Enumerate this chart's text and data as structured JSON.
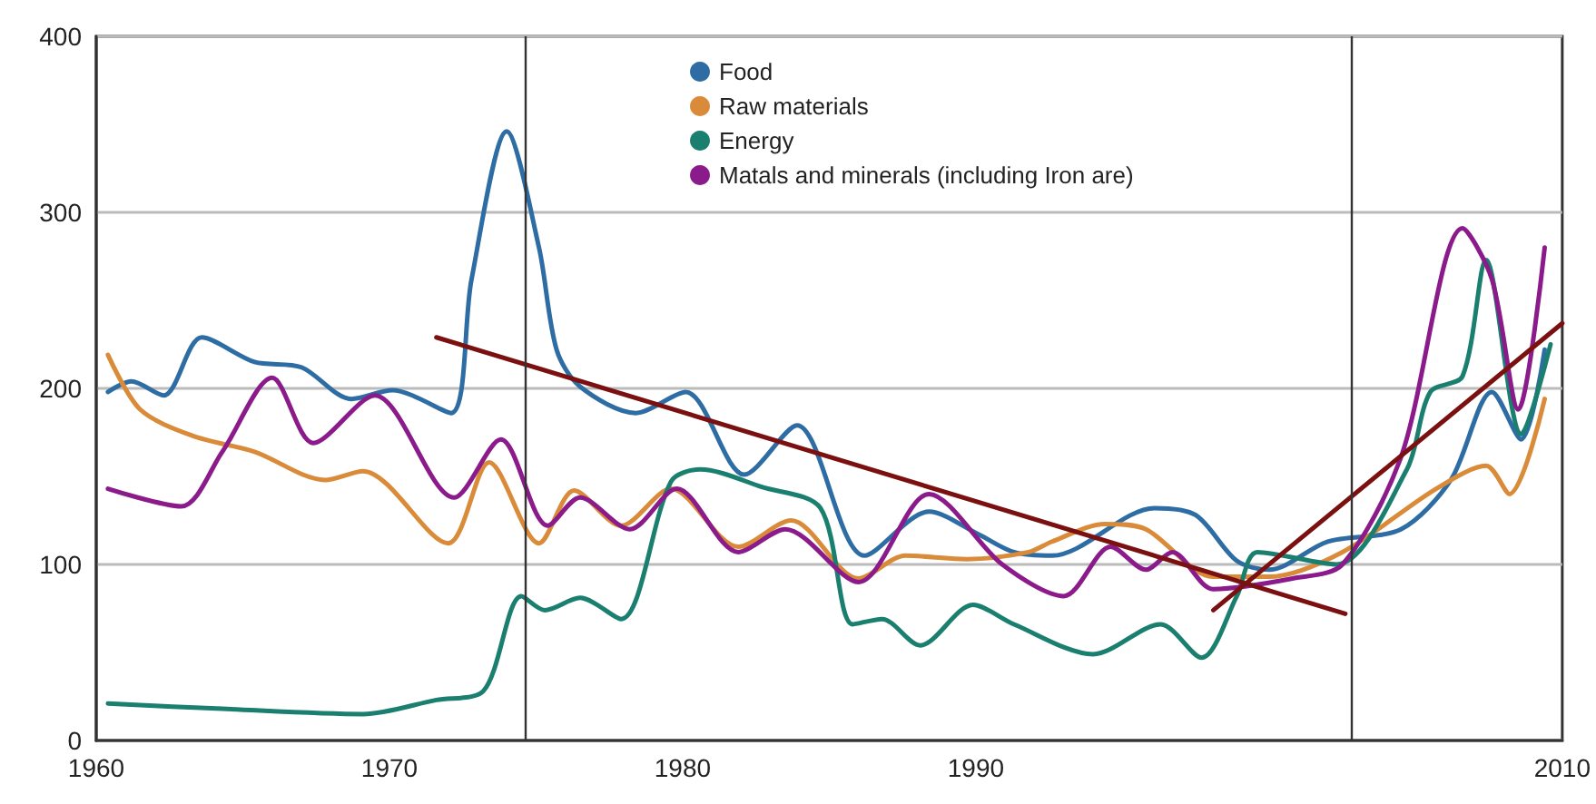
{
  "chart_data": {
    "type": "line",
    "xlim": [
      1960,
      2010
    ],
    "xticks": [
      1960,
      1970,
      1980,
      1990,
      2010
    ],
    "ylim": [
      0,
      400
    ],
    "yticks": [
      0,
      100,
      200,
      300,
      400
    ],
    "grid": "y",
    "legend": "top",
    "marker": "none",
    "line_style": "solid",
    "series": [
      {
        "name": "Food",
        "color": "#2e6da4",
        "x": [
          1960.4,
          1961.2,
          1962.3,
          1963.6,
          1965.4,
          1967.0,
          1968.7,
          1970.1,
          1972.1,
          1972.8,
          1974.0,
          1975.1,
          1975.7,
          1976.5,
          1978.4,
          1980.1,
          1982.1,
          1983.9,
          1986.2,
          1988.4,
          1990.1,
          1991.3,
          1992.6,
          1996.1,
          1997.5,
          1998.9,
          2000.0,
          2002.0,
          2004.5,
          2006.2,
          2007.6,
          2008.6,
          2009.4
        ],
        "values": [
          198,
          204,
          196,
          229,
          215,
          212,
          194,
          199,
          186,
          262,
          346,
          280,
          222,
          201,
          186,
          198,
          151,
          179,
          105,
          130,
          117,
          107,
          105,
          132,
          128,
          102,
          97,
          113,
          120,
          148,
          198,
          171,
          222
        ]
      },
      {
        "name": "Raw materials",
        "color": "#d98b3a",
        "x": [
          1960.4,
          1961.5,
          1963.3,
          1965.4,
          1967.8,
          1969.1,
          1972.0,
          1973.4,
          1975.1,
          1976.3,
          1977.9,
          1979.6,
          1981.9,
          1983.7,
          1986.0,
          1987.6,
          1989.7,
          1991.8,
          1992.6,
          1994.4,
          1995.8,
          1998.1,
          2000.0,
          2002.5,
          2005.7,
          2007.4,
          2008.2,
          2009.4
        ],
        "values": [
          219,
          188,
          173,
          164,
          148,
          153,
          112,
          158,
          112,
          142,
          122,
          143,
          110,
          125,
          92,
          105,
          103,
          107,
          113,
          123,
          120,
          93,
          93,
          107,
          143,
          156,
          140,
          194
        ]
      },
      {
        "name": "Energy",
        "color": "#1a7f6e",
        "x": [
          1960.4,
          1964.3,
          1969.1,
          1971.6,
          1973.2,
          1974.5,
          1975.3,
          1976.5,
          1977.9,
          1979.6,
          1980.6,
          1982.7,
          1984.7,
          1985.8,
          1986.8,
          1988.1,
          1989.9,
          1991.3,
          1994.0,
          1996.3,
          1997.7,
          1998.9,
          1999.6,
          2002.3,
          2004.7,
          2005.5,
          2006.6,
          2007.4,
          2008.6,
          2009.6
        ],
        "values": [
          21,
          18,
          15,
          23,
          28,
          82,
          74,
          81,
          69,
          147,
          154,
          144,
          132,
          66,
          69,
          54,
          77,
          66,
          49,
          66,
          47,
          82,
          107,
          100,
          154,
          198,
          207,
          273,
          174,
          225
        ]
      },
      {
        "name": "Matals and minerals (including Iron are)",
        "color": "#8b1a8b",
        "x": [
          1960.4,
          1962.9,
          1964.3,
          1966.0,
          1967.4,
          1969.5,
          1972.2,
          1973.8,
          1975.4,
          1976.5,
          1978.2,
          1979.8,
          1981.9,
          1983.5,
          1986.0,
          1988.4,
          1990.9,
          1993.0,
          1994.6,
          1995.8,
          1996.7,
          1998.1,
          2000.8,
          2002.5,
          2004.5,
          2006.6,
          2007.6,
          2008.5,
          2009.4
        ],
        "values": [
          143,
          133,
          164,
          206,
          169,
          196,
          138,
          171,
          122,
          138,
          120,
          143,
          107,
          120,
          90,
          140,
          100,
          82,
          110,
          97,
          107,
          86,
          92,
          100,
          161,
          291,
          262,
          188,
          280
        ]
      },
      {
        "type": "line",
        "color": "#7b1010",
        "x": [
          1971.6,
          2002.6
        ],
        "values": [
          229,
          72
        ]
      },
      {
        "type": "line",
        "color": "#7b1010",
        "x": [
          1998.1,
          2010
        ],
        "values": [
          74,
          237
        ]
      }
    ],
    "ref_lines": [
      {
        "axis": "x",
        "value": 1974.6,
        "color": "#333333"
      },
      {
        "axis": "x",
        "value": 2002.8,
        "color": "#333333"
      }
    ]
  }
}
